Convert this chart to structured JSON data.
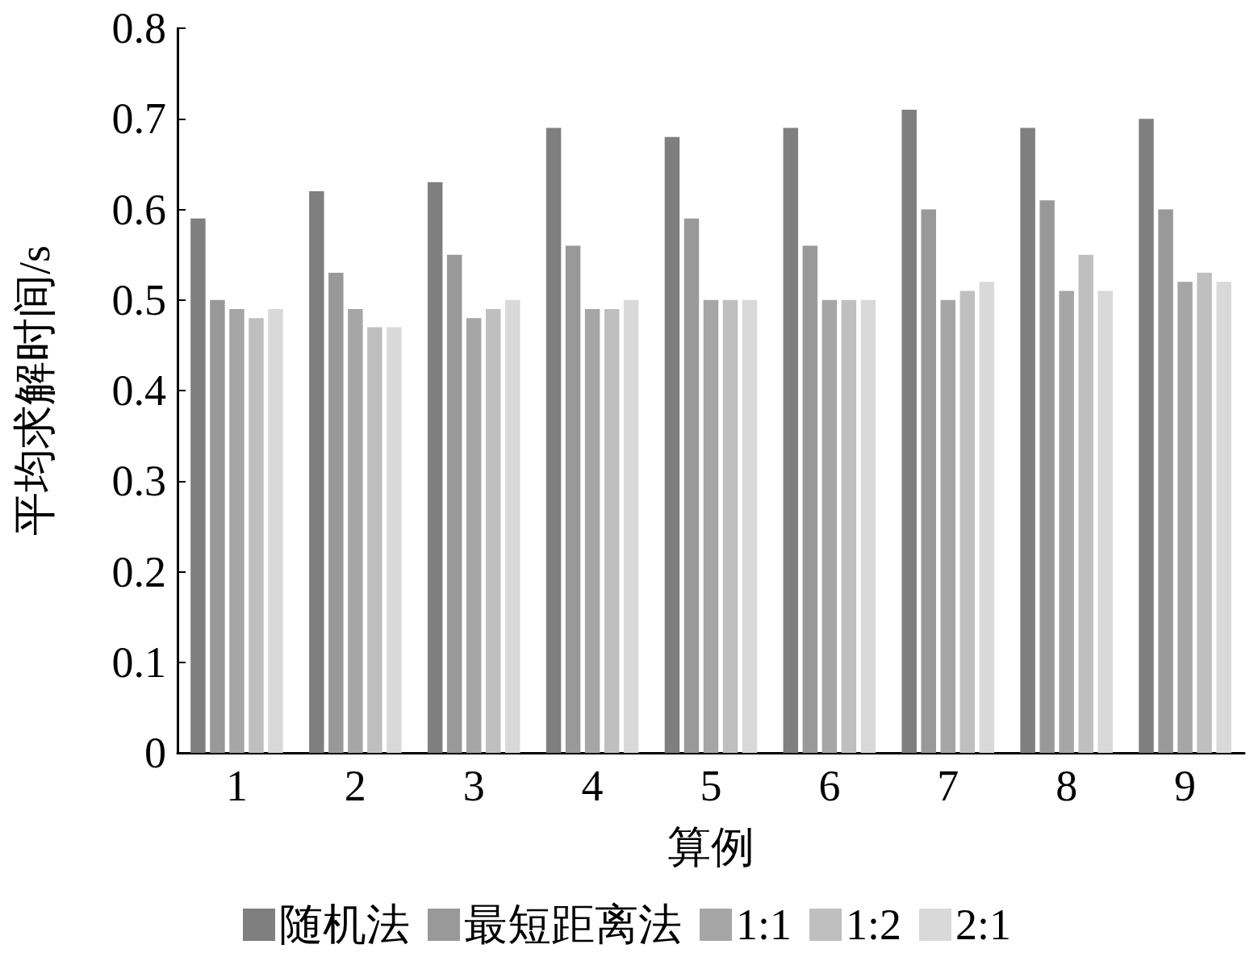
{
  "chart_data": {
    "type": "bar",
    "xlabel": "算例",
    "ylabel": "平均求解时间/s",
    "categories": [
      "1",
      "2",
      "3",
      "4",
      "5",
      "6",
      "7",
      "8",
      "9"
    ],
    "series": [
      {
        "name": "随机法",
        "color": "#7f7f7f",
        "values": [
          0.59,
          0.62,
          0.63,
          0.69,
          0.68,
          0.69,
          0.71,
          0.69,
          0.7
        ]
      },
      {
        "name": "最短距离法",
        "color": "#999999",
        "values": [
          0.5,
          0.53,
          0.55,
          0.56,
          0.59,
          0.56,
          0.6,
          0.61,
          0.6
        ]
      },
      {
        "name": "1:1",
        "color": "#a6a6a6",
        "values": [
          0.49,
          0.49,
          0.48,
          0.49,
          0.5,
          0.5,
          0.5,
          0.51,
          0.52
        ]
      },
      {
        "name": "1:2",
        "color": "#bfbfbf",
        "values": [
          0.48,
          0.47,
          0.49,
          0.49,
          0.5,
          0.5,
          0.51,
          0.55,
          0.53
        ]
      },
      {
        "name": "2:1",
        "color": "#d9d9d9",
        "values": [
          0.49,
          0.47,
          0.5,
          0.5,
          0.5,
          0.5,
          0.52,
          0.51,
          0.52
        ]
      }
    ],
    "ylim": [
      0,
      0.8
    ],
    "yticks": [
      0,
      0.1,
      0.2,
      0.3,
      0.4,
      0.5,
      0.6,
      0.7,
      0.8
    ],
    "grid": false,
    "legend": "bottom"
  }
}
